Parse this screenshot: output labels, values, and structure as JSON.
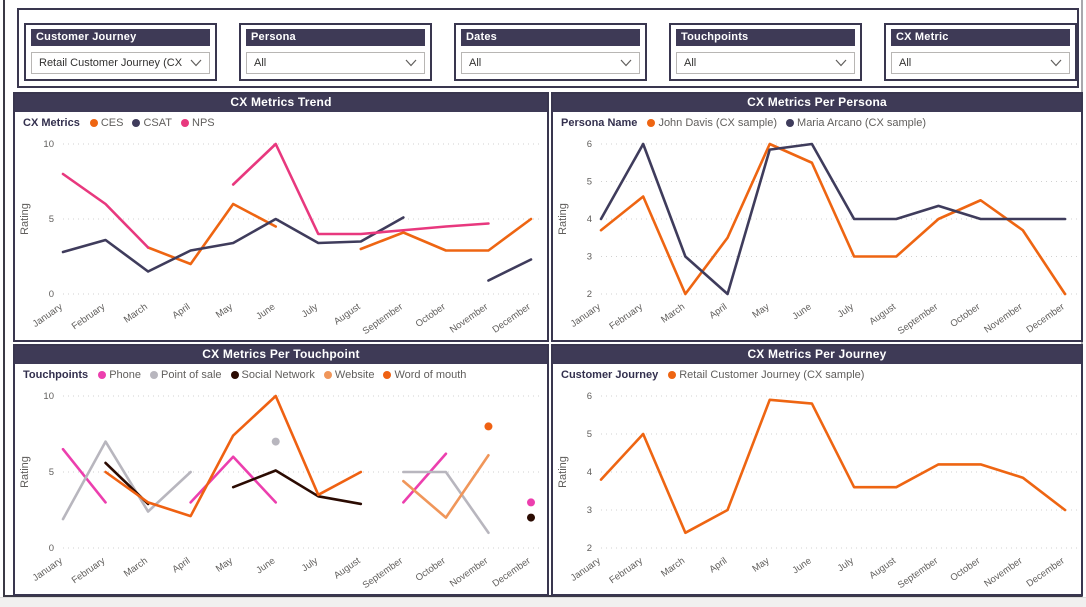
{
  "slicers": [
    {
      "label": "Customer Journey",
      "value": "Retail Customer Journey (CX sa..."
    },
    {
      "label": "Persona",
      "value": "All"
    },
    {
      "label": "Dates",
      "value": "All"
    },
    {
      "label": "Touchpoints",
      "value": "All"
    },
    {
      "label": "CX Metric",
      "value": "All"
    }
  ],
  "colors": {
    "header_bg": "#3E3A56",
    "panel_border": "#39364F",
    "axis_text": "#605E5C",
    "gridline": "#D0D0D0",
    "orange": "#EE6512",
    "navy": "#3F3C5C",
    "pink": "#E8387E",
    "magenta": "#EC3FAE",
    "gray": "#B8B6BE",
    "dark_brown": "#2B0B02",
    "light_orange": "#F0965A"
  },
  "chart_data": [
    {
      "type": "line",
      "title": "CX Metrics Trend",
      "legend_label": "CX Metrics",
      "ylabel": "Rating",
      "ylim": [
        0,
        10
      ],
      "yticks": [
        0,
        5,
        10
      ],
      "categories": [
        "January",
        "February",
        "March",
        "April",
        "May",
        "June",
        "July",
        "August",
        "September",
        "October",
        "November",
        "December"
      ],
      "series": [
        {
          "name": "CES",
          "color": "#EE6512",
          "values": [
            null,
            null,
            3.1,
            2,
            6,
            4.5,
            null,
            3,
            4.1,
            2.9,
            2.9,
            5
          ]
        },
        {
          "name": "CSAT",
          "color": "#3F3C5C",
          "values": [
            2.8,
            3.6,
            1.5,
            2.9,
            3.4,
            5,
            3.4,
            3.5,
            5.1,
            null,
            0.9,
            2.3
          ]
        },
        {
          "name": "NPS",
          "color": "#E8387E",
          "values": [
            8,
            6,
            3.1,
            null,
            7.3,
            10,
            4,
            4,
            4.25,
            4.5,
            4.7,
            null
          ]
        }
      ]
    },
    {
      "type": "line",
      "title": "CX Metrics Per Persona",
      "legend_label": "Persona Name",
      "ylabel": "Rating",
      "ylim": [
        2,
        6
      ],
      "yticks": [
        2,
        3,
        4,
        5,
        6
      ],
      "categories": [
        "January",
        "February",
        "March",
        "April",
        "May",
        "June",
        "July",
        "August",
        "September",
        "October",
        "November",
        "December"
      ],
      "series": [
        {
          "name": "John Davis (CX sample)",
          "color": "#EE6512",
          "values": [
            3.7,
            4.6,
            2,
            3.5,
            6,
            5.5,
            3,
            3,
            4,
            4.5,
            3.7,
            2
          ]
        },
        {
          "name": "Maria Arcano (CX sample)",
          "color": "#3F3C5C",
          "values": [
            4,
            6,
            3,
            2,
            5.85,
            6,
            4,
            4,
            4.35,
            4,
            4,
            4
          ]
        }
      ]
    },
    {
      "type": "line",
      "title": "CX Metrics Per Touchpoint",
      "legend_label": "Touchpoints",
      "ylabel": "Rating",
      "ylim": [
        0,
        10
      ],
      "yticks": [
        0,
        5,
        10
      ],
      "categories": [
        "January",
        "February",
        "March",
        "April",
        "May",
        "June",
        "July",
        "August",
        "September",
        "October",
        "November",
        "December"
      ],
      "series": [
        {
          "name": "Phone",
          "color": "#EC3FAE",
          "values": [
            6.5,
            3,
            null,
            3,
            6,
            3,
            null,
            null,
            3,
            6.2,
            null,
            3
          ]
        },
        {
          "name": "Point of sale",
          "color": "#B8B6BE",
          "values": [
            1.9,
            7,
            2.4,
            5,
            null,
            7,
            null,
            null,
            5,
            5,
            1,
            null
          ]
        },
        {
          "name": "Social Network",
          "color": "#2B0B02",
          "values": [
            null,
            5.6,
            2.9,
            null,
            4,
            5.1,
            3.4,
            2.9,
            null,
            null,
            null,
            2
          ]
        },
        {
          "name": "Website",
          "color": "#F0965A",
          "values": [
            null,
            null,
            null,
            null,
            null,
            null,
            null,
            null,
            4.4,
            2,
            6.1,
            null
          ]
        },
        {
          "name": "Word of mouth",
          "color": "#EF6112",
          "values": [
            null,
            5,
            3,
            2.1,
            7.4,
            10,
            3.5,
            5,
            null,
            null,
            8,
            null
          ]
        }
      ]
    },
    {
      "type": "line",
      "title": "CX Metrics Per Journey",
      "legend_label": "Customer Journey",
      "ylabel": "Rating",
      "ylim": [
        2,
        6
      ],
      "yticks": [
        2,
        3,
        4,
        5,
        6
      ],
      "categories": [
        "January",
        "February",
        "March",
        "April",
        "May",
        "June",
        "July",
        "August",
        "September",
        "October",
        "November",
        "December"
      ],
      "series": [
        {
          "name": "Retail Customer Journey (CX sample)",
          "color": "#EE6512",
          "values": [
            3.8,
            5,
            2.4,
            3,
            5.9,
            5.8,
            3.6,
            3.6,
            4.2,
            4.2,
            3.85,
            3
          ]
        }
      ]
    }
  ]
}
